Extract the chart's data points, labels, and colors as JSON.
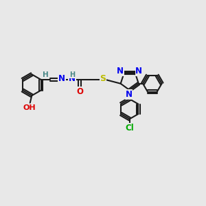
{
  "bg_color": "#e8e8e8",
  "bond_color": "#1a1a1a",
  "bond_width": 1.5,
  "atom_colors": {
    "N": "#0000ee",
    "O": "#dd0000",
    "S": "#bbbb00",
    "Cl": "#00aa00",
    "H_label": "#4a8888"
  },
  "layout": {
    "figsize": [
      3.0,
      3.0
    ],
    "dpi": 100,
    "xlim": [
      0,
      12
    ],
    "ylim": [
      0,
      10
    ]
  }
}
